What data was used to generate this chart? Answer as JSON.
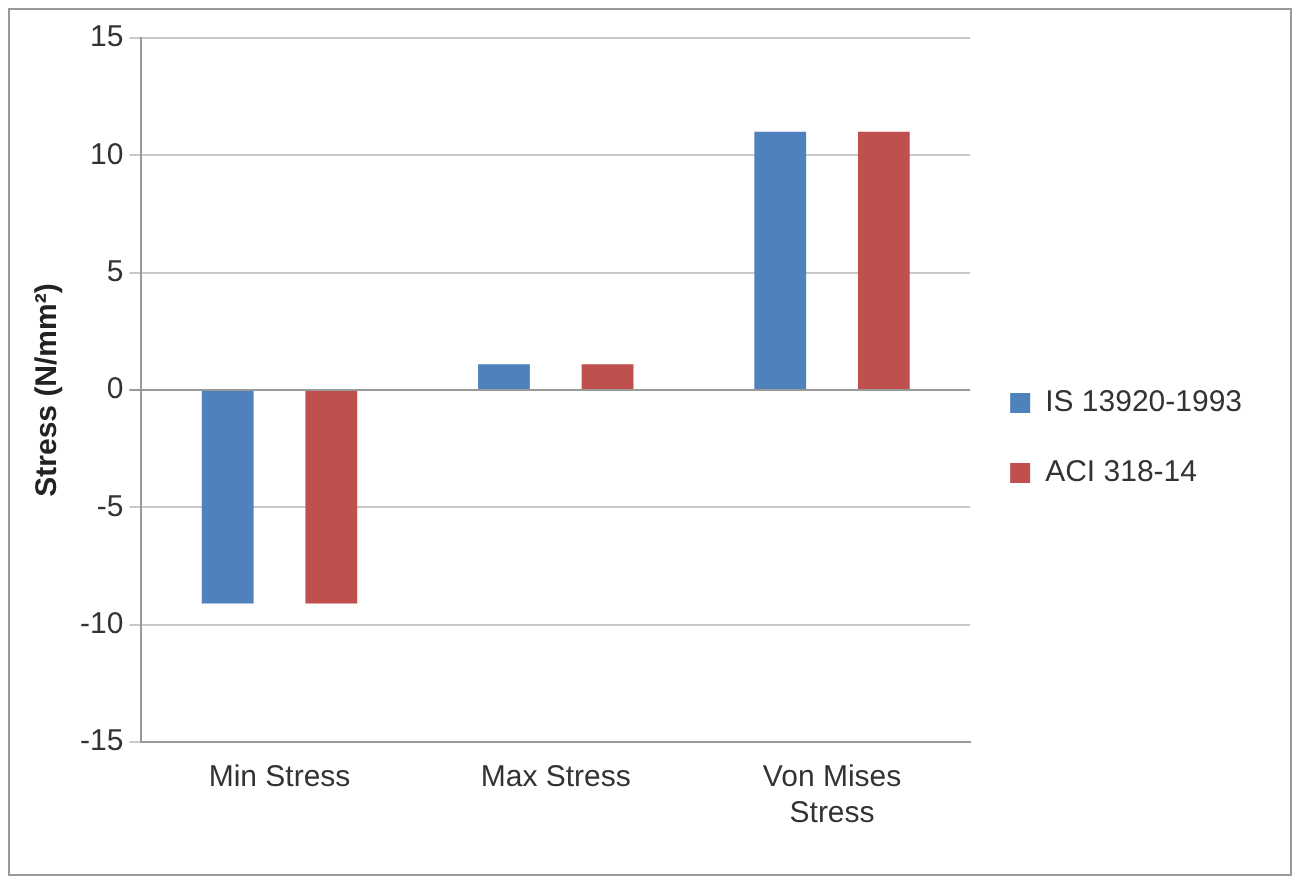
{
  "chart_data": {
    "type": "bar",
    "ylabel": "Stress (N/mm²)",
    "categories": [
      "Min Stress",
      "Max Stress",
      "Von Mises Stress"
    ],
    "series": [
      {
        "name": "IS 13920-1993",
        "color": "#4f81bd",
        "values": [
          -9.1,
          1.1,
          11
        ]
      },
      {
        "name": "ACI 318-14",
        "color": "#c0504d",
        "values": [
          -9.1,
          1.1,
          11
        ]
      }
    ],
    "ylim": [
      -15,
      15
    ],
    "yticks": [
      -15,
      -10,
      -5,
      0,
      5,
      10,
      15
    ],
    "grid": "y",
    "legend": "right"
  }
}
